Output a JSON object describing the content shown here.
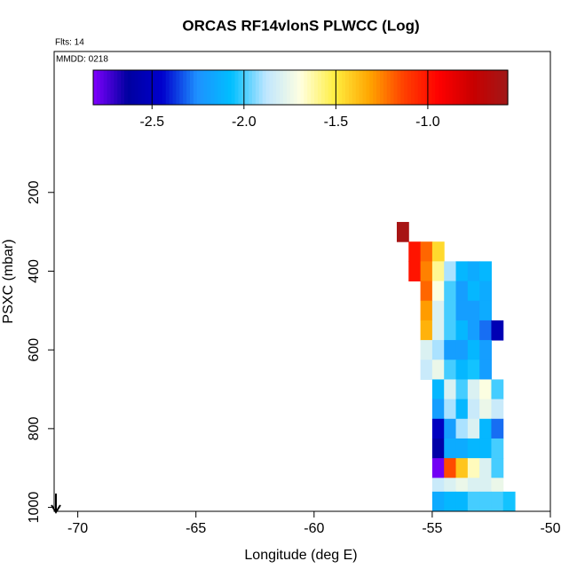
{
  "chart_data": {
    "type": "heatmap",
    "title": "ORCAS RF14vlonS PLWCC (Log)",
    "subtitle": "Flts: 14",
    "annotation": "MMDD: 0218",
    "xlabel": "Longitude (deg E)",
    "ylabel": "PSXC (mbar)",
    "xlim": [
      -71,
      -50
    ],
    "xticks": [
      -70,
      -65,
      -60,
      -55,
      -50
    ],
    "ylim": [
      1010,
      -158
    ],
    "yticks": [
      200,
      400,
      600,
      800,
      1000
    ],
    "zlim": [
      -2.82,
      -0.565
    ],
    "zticks": [
      -2.5,
      {
        "value": -2.0,
        "label": "-2.0"
      },
      -1.5,
      {
        "value": -1.0,
        "label": "-1.0"
      }
    ],
    "colors": [
      "#8000ff",
      "#0000a0",
      "#0000cd",
      "#1e90ff",
      "#00bfff",
      "#bfe6ff",
      "#ffffe0",
      "#ffee40",
      "#ffa500",
      "#ff4000",
      "#ff0000",
      "#c80000",
      "#a01818"
    ],
    "cells": [
      [
        -56.25,
        300,
        -0.6
      ],
      [
        -55.75,
        350,
        -1.0
      ],
      [
        -55.25,
        350,
        -1.2
      ],
      [
        -54.75,
        350,
        -1.45
      ],
      [
        -55.75,
        400,
        -1.0
      ],
      [
        -55.25,
        400,
        -1.25
      ],
      [
        -54.75,
        400,
        -1.6
      ],
      [
        -54.25,
        400,
        -1.9
      ],
      [
        -53.75,
        400,
        -2.1
      ],
      [
        -53.25,
        400,
        -2.15
      ],
      [
        -52.75,
        400,
        -2.1
      ],
      [
        -55.25,
        450,
        -1.2
      ],
      [
        -54.75,
        450,
        -1.7
      ],
      [
        -54.25,
        450,
        -2.0
      ],
      [
        -53.75,
        450,
        -2.2
      ],
      [
        -53.25,
        450,
        -2.1
      ],
      [
        -52.75,
        450,
        -2.15
      ],
      [
        -55.25,
        500,
        -1.3
      ],
      [
        -54.75,
        500,
        -1.8
      ],
      [
        -54.25,
        500,
        -2.0
      ],
      [
        -53.75,
        500,
        -2.2
      ],
      [
        -53.25,
        500,
        -2.2
      ],
      [
        -52.75,
        500,
        -2.15
      ],
      [
        -55.25,
        550,
        -1.35
      ],
      [
        -54.75,
        550,
        -1.8
      ],
      [
        -54.25,
        550,
        -2.0
      ],
      [
        -53.75,
        550,
        -2.1
      ],
      [
        -53.25,
        550,
        -2.2
      ],
      [
        -52.75,
        550,
        -2.3
      ],
      [
        -52.25,
        550,
        -2.55
      ],
      [
        -55.25,
        600,
        -1.8
      ],
      [
        -54.75,
        600,
        -1.9
      ],
      [
        -54.25,
        600,
        -2.2
      ],
      [
        -53.75,
        600,
        -2.2
      ],
      [
        -53.25,
        600,
        -2.1
      ],
      [
        -52.75,
        600,
        -2.2
      ],
      [
        -55.25,
        650,
        -1.85
      ],
      [
        -54.75,
        650,
        -1.75
      ],
      [
        -54.25,
        650,
        -2.0
      ],
      [
        -53.75,
        650,
        -2.1
      ],
      [
        -53.25,
        650,
        -2.05
      ],
      [
        -52.75,
        650,
        -2.2
      ],
      [
        -54.75,
        700,
        -2.1
      ],
      [
        -54.25,
        700,
        -1.8
      ],
      [
        -53.75,
        700,
        -2.0
      ],
      [
        -53.25,
        700,
        -1.8
      ],
      [
        -52.75,
        700,
        -1.7
      ],
      [
        -52.25,
        700,
        -2.0
      ],
      [
        -54.75,
        750,
        -2.2
      ],
      [
        -54.25,
        750,
        -1.9
      ],
      [
        -53.75,
        750,
        -2.1
      ],
      [
        -53.25,
        750,
        -1.85
      ],
      [
        -52.75,
        750,
        -1.75
      ],
      [
        -52.25,
        750,
        -1.85
      ],
      [
        -54.75,
        800,
        -2.5
      ],
      [
        -54.25,
        800,
        -2.2
      ],
      [
        -53.75,
        800,
        -1.9
      ],
      [
        -53.25,
        800,
        -1.8
      ],
      [
        -52.75,
        800,
        -2.1
      ],
      [
        -52.25,
        800,
        -2.3
      ],
      [
        -54.75,
        850,
        -2.6
      ],
      [
        -54.25,
        850,
        -2.15
      ],
      [
        -53.75,
        850,
        -2.15
      ],
      [
        -53.25,
        850,
        -2.1
      ],
      [
        -52.75,
        850,
        -2.1
      ],
      [
        -52.25,
        850,
        -2.0
      ],
      [
        -54.75,
        900,
        -2.8
      ],
      [
        -54.25,
        900,
        -1.15
      ],
      [
        -53.75,
        900,
        -1.4
      ],
      [
        -53.25,
        900,
        -1.65
      ],
      [
        -52.75,
        900,
        -1.8
      ],
      [
        -52.25,
        900,
        -2.0
      ],
      [
        -54.75,
        950,
        -1.85
      ],
      [
        -54.25,
        950,
        -1.8
      ],
      [
        -53.75,
        950,
        -1.75
      ],
      [
        -53.25,
        950,
        -1.8
      ],
      [
        -52.75,
        950,
        -1.8
      ],
      [
        -52.25,
        950,
        -1.75
      ],
      [
        -54.75,
        985,
        -2.15
      ],
      [
        -54.25,
        985,
        -2.1
      ],
      [
        -53.75,
        985,
        -2.1
      ],
      [
        -53.25,
        985,
        -2.0
      ],
      [
        -52.75,
        985,
        -2.0
      ],
      [
        -52.25,
        985,
        -2.0
      ],
      [
        -51.75,
        985,
        -2.05
      ]
    ]
  }
}
